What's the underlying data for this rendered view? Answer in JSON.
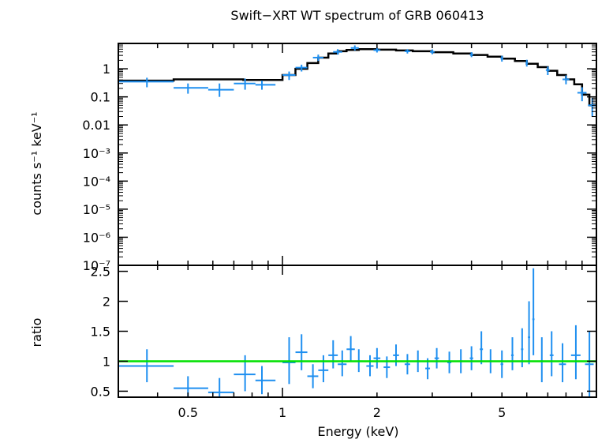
{
  "chart_data": [
    {
      "type": "line",
      "title": "Swift−XRT WT spectrum of GRB 060413",
      "xlabel": "Energy (keV)",
      "ylabel": "counts s⁻¹ keV⁻¹",
      "xscale": "log",
      "yscale": "log",
      "xlim": [
        0.3,
        10
      ],
      "ylim": [
        1e-07,
        8
      ],
      "yticks": [
        {
          "value": 1,
          "label": "1"
        },
        {
          "value": 0.1,
          "label": "0.1"
        },
        {
          "value": 0.01,
          "label": "0.01"
        },
        {
          "value": 0.001,
          "label": "10⁻³"
        },
        {
          "value": 0.0001,
          "label": "10⁻⁴"
        },
        {
          "value": 1e-05,
          "label": "10⁻⁵"
        },
        {
          "value": 1e-06,
          "label": "10⁻⁶"
        },
        {
          "value": 1e-07,
          "label": "10⁻⁷"
        }
      ],
      "series": [
        {
          "kind": "model-step",
          "color": "#000000",
          "x": [
            0.3,
            0.45,
            0.75,
            1.0,
            1.1,
            1.2,
            1.3,
            1.4,
            1.5,
            1.6,
            1.75,
            2.0,
            2.3,
            2.6,
            3.0,
            3.5,
            4.0,
            4.5,
            5.0,
            5.5,
            6.0,
            6.5,
            7.0,
            7.5,
            8.0,
            8.5,
            9.0,
            9.5,
            10.0
          ],
          "y": [
            0.38,
            0.42,
            0.4,
            0.6,
            1.0,
            1.6,
            2.5,
            3.5,
            4.2,
            4.7,
            5.0,
            4.8,
            4.5,
            4.2,
            3.9,
            3.5,
            3.1,
            2.7,
            2.3,
            1.9,
            1.5,
            1.15,
            0.85,
            0.6,
            0.42,
            0.28,
            0.12,
            0.05,
            0.05
          ]
        },
        {
          "kind": "data-errorbars",
          "color": "#1e8ff0",
          "points": [
            {
              "x": 0.37,
              "xlo": 0.3,
              "xhi": 0.45,
              "y": 0.35,
              "ylo": 0.22,
              "yhi": 0.48
            },
            {
              "x": 0.5,
              "xlo": 0.45,
              "xhi": 0.58,
              "y": 0.21,
              "ylo": 0.13,
              "yhi": 0.3
            },
            {
              "x": 0.63,
              "xlo": 0.58,
              "xhi": 0.7,
              "y": 0.18,
              "ylo": 0.1,
              "yhi": 0.3
            },
            {
              "x": 0.76,
              "xlo": 0.7,
              "xhi": 0.82,
              "y": 0.3,
              "ylo": 0.18,
              "yhi": 0.45
            },
            {
              "x": 0.86,
              "xlo": 0.82,
              "xhi": 0.95,
              "y": 0.27,
              "ylo": 0.18,
              "yhi": 0.38
            },
            {
              "x": 1.05,
              "xlo": 1.0,
              "xhi": 1.1,
              "y": 0.6,
              "ylo": 0.4,
              "yhi": 0.8
            },
            {
              "x": 1.15,
              "xlo": 1.1,
              "xhi": 1.2,
              "y": 1.1,
              "ylo": 0.8,
              "yhi": 1.4
            },
            {
              "x": 1.3,
              "xlo": 1.25,
              "xhi": 1.35,
              "y": 2.5,
              "ylo": 1.9,
              "yhi": 3.2
            },
            {
              "x": 1.5,
              "xlo": 1.45,
              "xhi": 1.55,
              "y": 4.0,
              "ylo": 3.2,
              "yhi": 5.0
            },
            {
              "x": 1.7,
              "xlo": 1.65,
              "xhi": 1.75,
              "y": 5.5,
              "ylo": 4.5,
              "yhi": 6.8
            },
            {
              "x": 2.0,
              "xlo": 1.95,
              "xhi": 2.05,
              "y": 4.6,
              "ylo": 3.8,
              "yhi": 5.6
            },
            {
              "x": 2.5,
              "xlo": 2.45,
              "xhi": 2.55,
              "y": 4.2,
              "ylo": 3.5,
              "yhi": 5.0
            },
            {
              "x": 3.0,
              "xlo": 2.95,
              "xhi": 3.05,
              "y": 4.0,
              "ylo": 3.3,
              "yhi": 4.9
            },
            {
              "x": 4.0,
              "xlo": 3.95,
              "xhi": 4.05,
              "y": 3.2,
              "ylo": 2.6,
              "yhi": 3.9
            },
            {
              "x": 5.0,
              "xlo": 4.95,
              "xhi": 5.05,
              "y": 2.3,
              "ylo": 1.8,
              "yhi": 2.9
            },
            {
              "x": 6.0,
              "xlo": 5.95,
              "xhi": 6.05,
              "y": 1.6,
              "ylo": 1.2,
              "yhi": 2.1
            },
            {
              "x": 7.0,
              "xlo": 6.9,
              "xhi": 7.1,
              "y": 0.9,
              "ylo": 0.6,
              "yhi": 1.2
            },
            {
              "x": 8.0,
              "xlo": 7.8,
              "xhi": 8.2,
              "y": 0.42,
              "ylo": 0.28,
              "yhi": 0.58
            },
            {
              "x": 9.0,
              "xlo": 8.7,
              "xhi": 9.3,
              "y": 0.14,
              "ylo": 0.07,
              "yhi": 0.22
            },
            {
              "x": 9.7,
              "xlo": 9.4,
              "xhi": 10.0,
              "y": 0.05,
              "ylo": 0.02,
              "yhi": 0.09
            }
          ]
        }
      ]
    },
    {
      "type": "line",
      "xlabel": "Energy (keV)",
      "ylabel": "ratio",
      "xscale": "log",
      "yscale": "linear",
      "xlim": [
        0.3,
        10
      ],
      "ylim": [
        0.4,
        2.6
      ],
      "xticks": [
        {
          "value": 0.5,
          "label": "0.5"
        },
        {
          "value": 1,
          "label": "1"
        },
        {
          "value": 2,
          "label": "2"
        },
        {
          "value": 5,
          "label": "5"
        }
      ],
      "yticks": [
        {
          "value": 0.5,
          "label": "0.5"
        },
        {
          "value": 1,
          "label": "1"
        },
        {
          "value": 1.5,
          "label": "1.5"
        },
        {
          "value": 2,
          "label": "2"
        },
        {
          "value": 2.5,
          "label": "2.5"
        }
      ],
      "reference_line": {
        "y": 1,
        "color": "#00e000"
      },
      "series": [
        {
          "kind": "data-errorbars",
          "color": "#1e8ff0",
          "points": [
            {
              "x": 0.37,
              "xlo": 0.3,
              "xhi": 0.45,
              "y": 0.92,
              "ylo": 0.65,
              "yhi": 1.2
            },
            {
              "x": 0.5,
              "xlo": 0.45,
              "xhi": 0.58,
              "y": 0.55,
              "ylo": 0.35,
              "yhi": 0.75
            },
            {
              "x": 0.63,
              "xlo": 0.58,
              "xhi": 0.7,
              "y": 0.48,
              "ylo": 0.25,
              "yhi": 0.72
            },
            {
              "x": 0.76,
              "xlo": 0.7,
              "xhi": 0.82,
              "y": 0.78,
              "ylo": 0.5,
              "yhi": 1.1
            },
            {
              "x": 0.86,
              "xlo": 0.82,
              "xhi": 0.95,
              "y": 0.68,
              "ylo": 0.45,
              "yhi": 0.92
            },
            {
              "x": 1.05,
              "xlo": 1.0,
              "xhi": 1.1,
              "y": 0.98,
              "ylo": 0.62,
              "yhi": 1.4
            },
            {
              "x": 1.15,
              "xlo": 1.1,
              "xhi": 1.2,
              "y": 1.15,
              "ylo": 0.85,
              "yhi": 1.45
            },
            {
              "x": 1.25,
              "xlo": 1.2,
              "xhi": 1.3,
              "y": 0.75,
              "ylo": 0.55,
              "yhi": 0.95
            },
            {
              "x": 1.35,
              "xlo": 1.3,
              "xhi": 1.4,
              "y": 0.85,
              "ylo": 0.65,
              "yhi": 1.1
            },
            {
              "x": 1.45,
              "xlo": 1.4,
              "xhi": 1.5,
              "y": 1.1,
              "ylo": 0.88,
              "yhi": 1.35
            },
            {
              "x": 1.55,
              "xlo": 1.5,
              "xhi": 1.6,
              "y": 0.95,
              "ylo": 0.75,
              "yhi": 1.18
            },
            {
              "x": 1.65,
              "xlo": 1.6,
              "xhi": 1.7,
              "y": 1.2,
              "ylo": 1.0,
              "yhi": 1.42
            },
            {
              "x": 1.75,
              "xlo": 1.7,
              "xhi": 1.8,
              "y": 1.0,
              "ylo": 0.82,
              "yhi": 1.2
            },
            {
              "x": 1.9,
              "xlo": 1.85,
              "xhi": 1.95,
              "y": 0.92,
              "ylo": 0.75,
              "yhi": 1.1
            },
            {
              "x": 2.0,
              "xlo": 1.95,
              "xhi": 2.05,
              "y": 1.05,
              "ylo": 0.88,
              "yhi": 1.22
            },
            {
              "x": 2.15,
              "xlo": 2.1,
              "xhi": 2.2,
              "y": 0.9,
              "ylo": 0.72,
              "yhi": 1.08
            },
            {
              "x": 2.3,
              "xlo": 2.25,
              "xhi": 2.35,
              "y": 1.1,
              "ylo": 0.92,
              "yhi": 1.28
            },
            {
              "x": 2.5,
              "xlo": 2.45,
              "xhi": 2.55,
              "y": 0.95,
              "ylo": 0.78,
              "yhi": 1.12
            },
            {
              "x": 2.7,
              "xlo": 2.65,
              "xhi": 2.75,
              "y": 1.0,
              "ylo": 0.82,
              "yhi": 1.18
            },
            {
              "x": 2.9,
              "xlo": 2.85,
              "xhi": 2.95,
              "y": 0.88,
              "ylo": 0.7,
              "yhi": 1.05
            },
            {
              "x": 3.1,
              "xlo": 3.05,
              "xhi": 3.15,
              "y": 1.05,
              "ylo": 0.88,
              "yhi": 1.22
            },
            {
              "x": 3.4,
              "xlo": 3.35,
              "xhi": 3.45,
              "y": 0.98,
              "ylo": 0.8,
              "yhi": 1.16
            },
            {
              "x": 3.7,
              "xlo": 3.65,
              "xhi": 3.75,
              "y": 1.0,
              "ylo": 0.8,
              "yhi": 1.2
            },
            {
              "x": 4.0,
              "xlo": 3.95,
              "xhi": 4.05,
              "y": 1.05,
              "ylo": 0.85,
              "yhi": 1.25
            },
            {
              "x": 4.3,
              "xlo": 4.25,
              "xhi": 4.35,
              "y": 1.2,
              "ylo": 0.95,
              "yhi": 1.5
            },
            {
              "x": 4.6,
              "xlo": 4.55,
              "xhi": 4.65,
              "y": 1.0,
              "ylo": 0.8,
              "yhi": 1.2
            },
            {
              "x": 5.0,
              "xlo": 4.95,
              "xhi": 5.05,
              "y": 0.95,
              "ylo": 0.72,
              "yhi": 1.18
            },
            {
              "x": 5.4,
              "xlo": 5.35,
              "xhi": 5.45,
              "y": 1.1,
              "ylo": 0.85,
              "yhi": 1.4
            },
            {
              "x": 5.8,
              "xlo": 5.75,
              "xhi": 5.85,
              "y": 1.2,
              "ylo": 0.9,
              "yhi": 1.55
            },
            {
              "x": 6.1,
              "xlo": 6.05,
              "xhi": 6.15,
              "y": 1.4,
              "ylo": 0.95,
              "yhi": 2.0
            },
            {
              "x": 6.3,
              "xlo": 6.25,
              "xhi": 6.35,
              "y": 1.7,
              "ylo": 1.1,
              "yhi": 2.55
            },
            {
              "x": 6.7,
              "xlo": 6.6,
              "xhi": 6.8,
              "y": 1.0,
              "ylo": 0.65,
              "yhi": 1.4
            },
            {
              "x": 7.2,
              "xlo": 7.1,
              "xhi": 7.3,
              "y": 1.1,
              "ylo": 0.75,
              "yhi": 1.5
            },
            {
              "x": 7.8,
              "xlo": 7.6,
              "xhi": 8.0,
              "y": 0.95,
              "ylo": 0.65,
              "yhi": 1.3
            },
            {
              "x": 8.6,
              "xlo": 8.3,
              "xhi": 8.9,
              "y": 1.1,
              "ylo": 0.7,
              "yhi": 1.6
            },
            {
              "x": 9.5,
              "xlo": 9.2,
              "xhi": 9.8,
              "y": 0.95,
              "ylo": 0.4,
              "yhi": 1.5
            }
          ]
        }
      ]
    }
  ]
}
